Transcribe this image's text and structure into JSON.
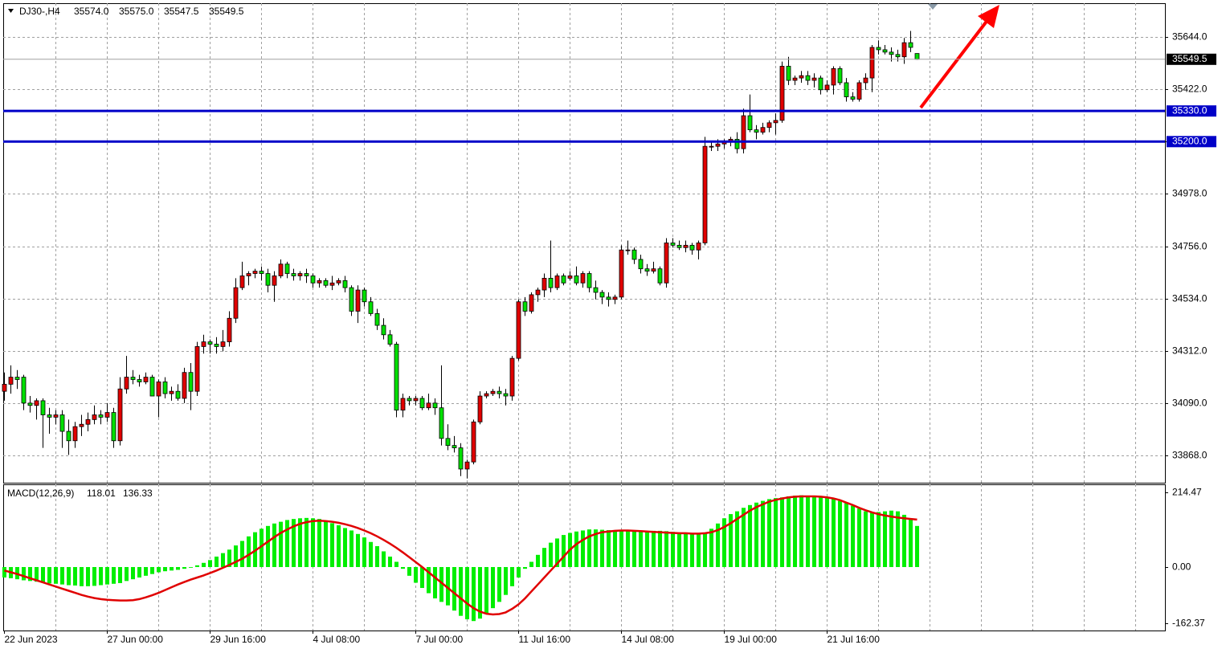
{
  "chart_data": [
    {
      "type": "candlestick",
      "title": "DJ30-,H4",
      "header_values": [
        "35574.0",
        "35575.0",
        "35547.5",
        "35549.5"
      ],
      "up_color": "#e00000",
      "down_color": "#00e000",
      "ylim": [
        33751.9,
        35787.5
      ],
      "yticks": [
        {
          "value": 35644,
          "label": "35644.0"
        },
        {
          "value": 35422,
          "label": "35422.0"
        },
        {
          "value": 35200,
          "label": "35200.0"
        },
        {
          "value": 34978,
          "label": "34978.0"
        },
        {
          "value": 34756,
          "label": "34756.0"
        },
        {
          "value": 34534,
          "label": "34534.0"
        },
        {
          "value": 34312,
          "label": "34312.0"
        },
        {
          "value": 34090,
          "label": "34090.0"
        },
        {
          "value": 33868,
          "label": "33868.0"
        }
      ],
      "hlines": [
        {
          "value": 35330,
          "label": "35330.0"
        },
        {
          "value": 35200,
          "label": "35200.0"
        }
      ],
      "hline_color": "#0000c8",
      "xticks": [
        {
          "value": 0,
          "label": "22 Jun 2023"
        },
        {
          "value": 16,
          "label": "27 Jun 00:00"
        },
        {
          "value": 32,
          "label": "29 Jun 16:00"
        },
        {
          "value": 48,
          "label": "4 Jul 08:00"
        },
        {
          "value": 64,
          "label": "7 Jul 00:00"
        },
        {
          "value": 80,
          "label": "11 Jul 16:00"
        },
        {
          "value": 96,
          "label": "14 Jul 08:00"
        },
        {
          "value": 112,
          "label": "19 Jul 00:00"
        },
        {
          "value": 128,
          "label": "21 Jul 16:00"
        }
      ],
      "grid": true,
      "ohlc": [
        [
          34140,
          34220,
          34100,
          34170
        ],
        [
          34170,
          34250,
          34130,
          34200
        ],
        [
          34200,
          34230,
          34150,
          34190
        ],
        [
          34200,
          34210,
          34060,
          34090
        ],
        [
          34090,
          34120,
          34050,
          34080
        ],
        [
          34080,
          34110,
          34020,
          34100
        ],
        [
          34100,
          34110,
          33900,
          34040
        ],
        [
          34040,
          34070,
          33960,
          34030
        ],
        [
          34030,
          34060,
          34000,
          34040
        ],
        [
          34040,
          34060,
          33900,
          33970
        ],
        [
          33970,
          34020,
          33870,
          33930
        ],
        [
          33930,
          34010,
          33900,
          33990
        ],
        [
          33990,
          34040,
          33950,
          34000
        ],
        [
          34000,
          34050,
          33970,
          34020
        ],
        [
          34020,
          34080,
          34000,
          34040
        ],
        [
          34040,
          34060,
          34000,
          34030
        ],
        [
          34030,
          34090,
          34010,
          34050
        ],
        [
          34050,
          34070,
          33900,
          33930
        ],
        [
          33930,
          34200,
          33910,
          34150
        ],
        [
          34150,
          34290,
          34130,
          34200
        ],
        [
          34200,
          34230,
          34170,
          34190
        ],
        [
          34190,
          34210,
          34160,
          34180
        ],
        [
          34180,
          34220,
          34170,
          34200
        ],
        [
          34200,
          34210,
          34120,
          34120
        ],
        [
          34120,
          34190,
          34030,
          34180
        ],
        [
          34180,
          34200,
          34110,
          34130
        ],
        [
          34130,
          34160,
          34100,
          34140
        ],
        [
          34140,
          34170,
          34100,
          34110
        ],
        [
          34110,
          34240,
          34090,
          34220
        ],
        [
          34220,
          34260,
          34060,
          34140
        ],
        [
          34140,
          34350,
          34120,
          34330
        ],
        [
          34330,
          34380,
          34300,
          34350
        ],
        [
          34350,
          34360,
          34300,
          34340
        ],
        [
          34340,
          34370,
          34300,
          34330
        ],
        [
          34330,
          34400,
          34310,
          34350
        ],
        [
          34350,
          34480,
          34330,
          34450
        ],
        [
          34450,
          34620,
          34430,
          34580
        ],
        [
          34580,
          34690,
          34570,
          34630
        ],
        [
          34630,
          34650,
          34590,
          34640
        ],
        [
          34640,
          34660,
          34620,
          34650
        ],
        [
          34650,
          34670,
          34610,
          34640
        ],
        [
          34640,
          34660,
          34560,
          34590
        ],
        [
          34590,
          34650,
          34520,
          34630
        ],
        [
          34630,
          34700,
          34620,
          34680
        ],
        [
          34680,
          34690,
          34620,
          34640
        ],
        [
          34640,
          34660,
          34610,
          34630
        ],
        [
          34630,
          34650,
          34610,
          34640
        ],
        [
          34640,
          34660,
          34600,
          34630
        ],
        [
          34630,
          34640,
          34580,
          34600
        ],
        [
          34600,
          34620,
          34580,
          34610
        ],
        [
          34610,
          34620,
          34580,
          34590
        ],
        [
          34590,
          34630,
          34570,
          34600
        ],
        [
          34600,
          34620,
          34590,
          34610
        ],
        [
          34610,
          34630,
          34560,
          34580
        ],
        [
          34580,
          34590,
          34460,
          34480
        ],
        [
          34480,
          34590,
          34430,
          34570
        ],
        [
          34570,
          34580,
          34500,
          34520
        ],
        [
          34520,
          34540,
          34460,
          34470
        ],
        [
          34470,
          34490,
          34400,
          34420
        ],
        [
          34420,
          34450,
          34360,
          34380
        ],
        [
          34380,
          34400,
          34330,
          34340
        ],
        [
          34340,
          34350,
          34030,
          34060
        ],
        [
          34060,
          34130,
          34030,
          34110
        ],
        [
          34110,
          34120,
          34080,
          34100
        ],
        [
          34100,
          34120,
          34080,
          34110
        ],
        [
          34110,
          34120,
          34060,
          34070
        ],
        [
          34070,
          34130,
          34060,
          34090
        ],
        [
          34090,
          34110,
          34040,
          34070
        ],
        [
          34070,
          34250,
          33910,
          33940
        ],
        [
          33940,
          34000,
          33890,
          33910
        ],
        [
          33910,
          33950,
          33880,
          33900
        ],
        [
          33900,
          33920,
          33780,
          33810
        ],
        [
          33810,
          33850,
          33770,
          33840
        ],
        [
          33840,
          34020,
          33830,
          34010
        ],
        [
          34010,
          34140,
          34000,
          34120
        ],
        [
          34120,
          34140,
          34110,
          34130
        ],
        [
          34130,
          34150,
          34120,
          34140
        ],
        [
          34140,
          34160,
          34110,
          34130
        ],
        [
          34130,
          34150,
          34080,
          34120
        ],
        [
          34120,
          34290,
          34100,
          34280
        ],
        [
          34280,
          34530,
          34270,
          34520
        ],
        [
          34520,
          34540,
          34460,
          34480
        ],
        [
          34480,
          34560,
          34470,
          34550
        ],
        [
          34550,
          34580,
          34520,
          34570
        ],
        [
          34570,
          34640,
          34540,
          34620
        ],
        [
          34620,
          34780,
          34560,
          34580
        ],
        [
          34580,
          34640,
          34570,
          34630
        ],
        [
          34630,
          34640,
          34590,
          34600
        ],
        [
          34620,
          34650,
          34610,
          34630
        ],
        [
          34630,
          34670,
          34590,
          34600
        ],
        [
          34600,
          34650,
          34580,
          34640
        ],
        [
          34640,
          34650,
          34560,
          34580
        ],
        [
          34580,
          34610,
          34530,
          34560
        ],
        [
          34560,
          34570,
          34510,
          34540
        ],
        [
          34540,
          34560,
          34500,
          34530
        ],
        [
          34530,
          34550,
          34510,
          34540
        ],
        [
          34540,
          34760,
          34530,
          34740
        ],
        [
          34740,
          34780,
          34720,
          34740
        ],
        [
          34740,
          34750,
          34680,
          34700
        ],
        [
          34700,
          34720,
          34640,
          34660
        ],
        [
          34660,
          34680,
          34630,
          34650
        ],
        [
          34650,
          34690,
          34640,
          34660
        ],
        [
          34660,
          34670,
          34590,
          34600
        ],
        [
          34600,
          34790,
          34580,
          34770
        ],
        [
          34770,
          34790,
          34750,
          34760
        ],
        [
          34760,
          34780,
          34740,
          34750
        ],
        [
          34750,
          34780,
          34730,
          34760
        ],
        [
          34760,
          34770,
          34720,
          34740
        ],
        [
          34740,
          34780,
          34700,
          34770
        ],
        [
          34770,
          35220,
          34760,
          35180
        ],
        [
          35180,
          35200,
          35160,
          35180
        ],
        [
          35180,
          35210,
          35160,
          35190
        ],
        [
          35190,
          35210,
          35170,
          35200
        ],
        [
          35200,
          35220,
          35180,
          35210
        ],
        [
          35210,
          35240,
          35150,
          35170
        ],
        [
          35170,
          35340,
          35150,
          35310
        ],
        [
          35310,
          35400,
          35240,
          35250
        ],
        [
          35250,
          35270,
          35210,
          35240
        ],
        [
          35240,
          35280,
          35230,
          35260
        ],
        [
          35260,
          35290,
          35240,
          35280
        ],
        [
          35280,
          35320,
          35230,
          35290
        ],
        [
          35290,
          35540,
          35280,
          35520
        ],
        [
          35520,
          35560,
          35440,
          35460
        ],
        [
          35460,
          35480,
          35440,
          35470
        ],
        [
          35470,
          35500,
          35450,
          35480
        ],
        [
          35480,
          35500,
          35440,
          35460
        ],
        [
          35460,
          35490,
          35430,
          35470
        ],
        [
          35470,
          35480,
          35400,
          35420
        ],
        [
          35420,
          35460,
          35410,
          35440
        ],
        [
          35440,
          35520,
          35400,
          35510
        ],
        [
          35510,
          35520,
          35440,
          35450
        ],
        [
          35450,
          35470,
          35370,
          35390
        ],
        [
          35390,
          35410,
          35370,
          35380
        ],
        [
          35380,
          35460,
          35370,
          35450
        ],
        [
          35450,
          35490,
          35420,
          35470
        ],
        [
          35470,
          35610,
          35410,
          35600
        ],
        [
          35600,
          35630,
          35570,
          35590
        ],
        [
          35590,
          35610,
          35570,
          35580
        ],
        [
          35580,
          35600,
          35540,
          35570
        ],
        [
          35570,
          35590,
          35540,
          35560
        ],
        [
          35560,
          35640,
          35530,
          35620
        ],
        [
          35620,
          35670,
          35580,
          35600
        ],
        [
          35574,
          35575,
          35547.5,
          35549.5
        ]
      ]
    },
    {
      "type": "macd",
      "title": "MACD(12,26,9)",
      "ylim": [
        -182.2,
        237.5
      ],
      "yticks": [
        214.47,
        {
          "value": 0,
          "label": "0.00"
        },
        -162.37
      ],
      "series": [
        {
          "name": "MACD",
          "color": "#00ee00",
          "values": [
            -30,
            -32,
            -35,
            -38,
            -40,
            -42,
            -45,
            -47,
            -48,
            -50,
            -52,
            -53,
            -55,
            -55,
            -54,
            -52,
            -50,
            -48,
            -46,
            -40,
            -35,
            -30,
            -25,
            -20,
            -15,
            -12,
            -10,
            -8,
            -5,
            -2,
            5,
            12,
            20,
            30,
            40,
            50,
            62,
            75,
            88,
            100,
            110,
            118,
            125,
            130,
            135,
            138,
            140,
            141,
            140,
            138,
            132,
            126,
            120,
            112,
            105,
            95,
            85,
            72,
            60,
            45,
            30,
            15,
            -5,
            -25,
            -45,
            -60,
            -75,
            -90,
            -100,
            -110,
            -125,
            -140,
            -150,
            -155,
            -148,
            -135,
            -118,
            -100,
            -80,
            -55,
            -30,
            -5,
            15,
            35,
            55,
            70,
            82,
            92,
            98,
            102,
            105,
            108,
            108,
            107,
            106,
            105,
            104,
            103,
            102,
            101,
            102,
            104,
            104,
            103,
            101,
            99,
            97,
            96,
            95,
            97,
            110,
            125,
            140,
            152,
            160,
            170,
            178,
            185,
            190,
            195,
            198,
            200,
            203,
            205,
            206,
            205,
            204,
            202,
            200,
            196,
            190,
            184,
            176,
            168,
            160,
            156,
            158,
            160,
            162,
            160,
            150,
            138,
            118.01
          ]
        },
        {
          "name": "Signal",
          "color": "#e00000",
          "values": [
            -10,
            -15,
            -20,
            -26,
            -32,
            -38,
            -44,
            -50,
            -56,
            -62,
            -68,
            -74,
            -80,
            -85,
            -89,
            -92,
            -94,
            -95,
            -96,
            -96,
            -95,
            -92,
            -87,
            -81,
            -74,
            -66,
            -58,
            -50,
            -43,
            -36,
            -30,
            -24,
            -17,
            -10,
            -2,
            6,
            15,
            24,
            35,
            47,
            60,
            73,
            86,
            98,
            108,
            117,
            124,
            129,
            132,
            133,
            132,
            130,
            127,
            123,
            118,
            112,
            105,
            97,
            88,
            78,
            67,
            55,
            42,
            28,
            14,
            0,
            -15,
            -30,
            -45,
            -60,
            -75,
            -90,
            -105,
            -118,
            -128,
            -134,
            -136,
            -135,
            -130,
            -120,
            -107,
            -90,
            -70,
            -50,
            -30,
            -10,
            10,
            30,
            50,
            66,
            78,
            88,
            95,
            100,
            102,
            104,
            105,
            105,
            104,
            103,
            102,
            101,
            100,
            99,
            98,
            97,
            97,
            96,
            96,
            97,
            100,
            106,
            115,
            126,
            138,
            150,
            162,
            172,
            180,
            188,
            193,
            197,
            200,
            202,
            203,
            203,
            203,
            202,
            200,
            197,
            192,
            185,
            178,
            170,
            163,
            157,
            152,
            148,
            145,
            142,
            140,
            138,
            136.33
          ]
        }
      ]
    }
  ]
}
